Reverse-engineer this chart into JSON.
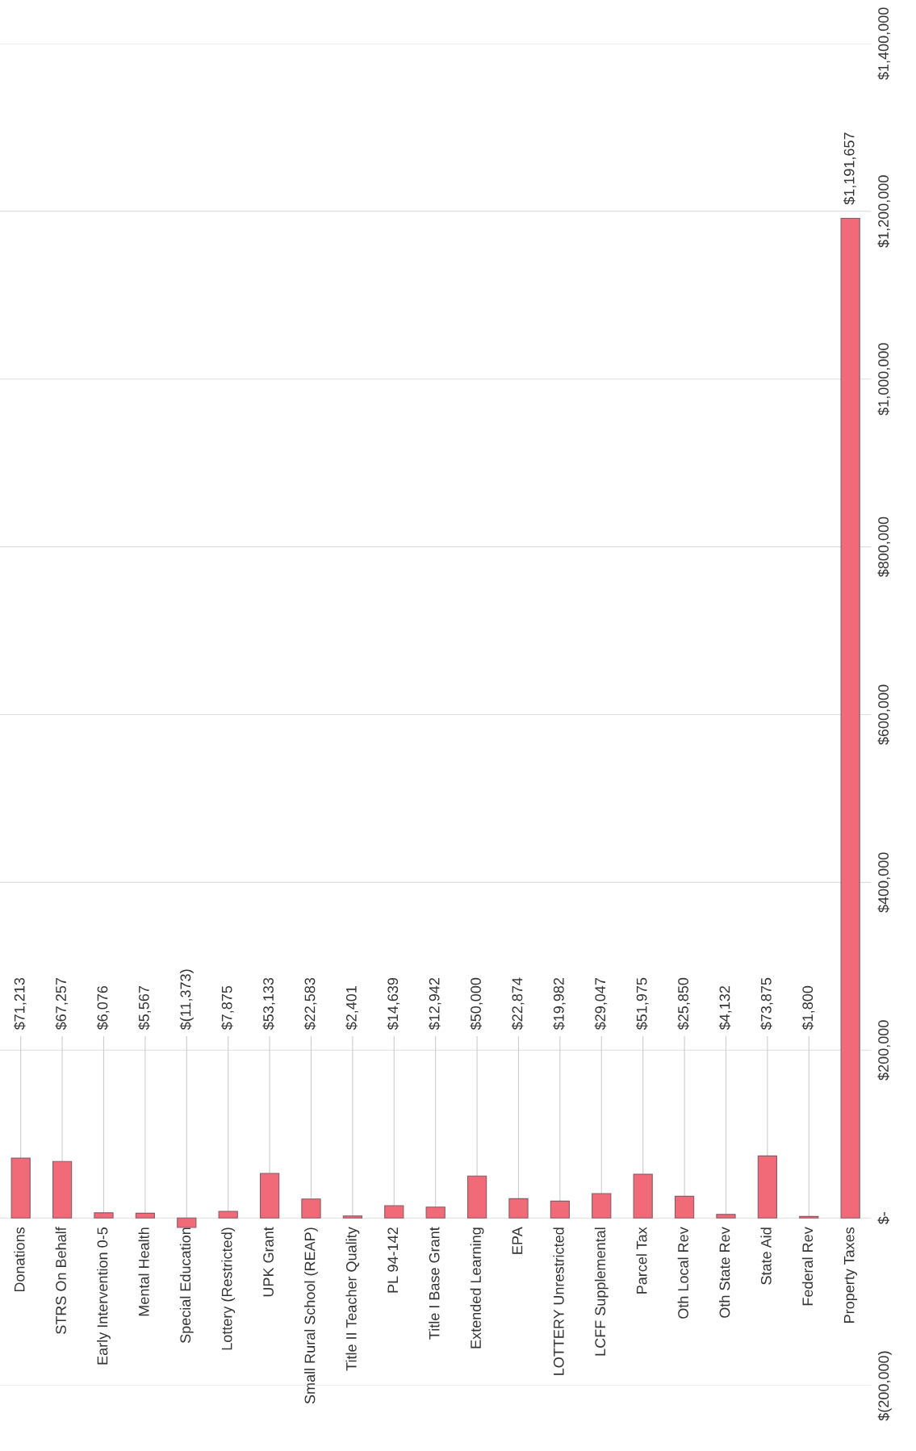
{
  "chart_data": {
    "type": "bar",
    "categories": [
      "Donations",
      "STRS On Behalf",
      "Early Intervention 0-5",
      "Mental Health",
      "Special Education",
      "Lottery (Restricted)",
      "UPK Grant",
      "Small Rural School (REAP)",
      "Title II Teacher Quality",
      "PL 94-142",
      "Title I Base Grant",
      "Extended Learning",
      "EPA",
      "LOTTERY Unrestricted",
      "LCFF Supplemental",
      "Parcel Tax",
      "Oth Local Rev",
      "Oth State Rev",
      "State Aid",
      "Federal Rev",
      "Property Taxes"
    ],
    "values": [
      71213,
      67257,
      6076,
      5567,
      -11373,
      7875,
      53133,
      22583,
      2401,
      14639,
      12942,
      50000,
      22874,
      19982,
      29047,
      51975,
      25850,
      4132,
      73875,
      1800,
      1191657
    ],
    "value_labels": [
      "$71,213",
      "$67,257",
      "$6,076",
      "$5,567",
      "$(11,373)",
      "$7,875",
      "$53,133",
      "$22,583",
      "$2,401",
      "$14,639",
      "$12,942",
      "$50,000",
      "$22,874",
      "$19,982",
      "$29,047",
      "$51,975",
      "$25,850",
      "$4,132",
      "$73,875",
      "$1,800",
      "$1,191,657"
    ],
    "color": "#f06a78",
    "ylim": [
      -200000,
      1400000
    ],
    "yticks": [
      {
        "value": -200000,
        "label": "$(200,000)"
      },
      {
        "value": 0,
        "label": "$-"
      },
      {
        "value": 200000,
        "label": "$200,000"
      },
      {
        "value": 400000,
        "label": "$400,000"
      },
      {
        "value": 600000,
        "label": "$600,000"
      },
      {
        "value": 800000,
        "label": "$800,000"
      },
      {
        "value": 1000000,
        "label": "$1,000,000"
      },
      {
        "value": 1200000,
        "label": "$1,200,000"
      },
      {
        "value": 1400000,
        "label": "$1,400,000"
      }
    ],
    "grid": "y",
    "legend": false
  }
}
